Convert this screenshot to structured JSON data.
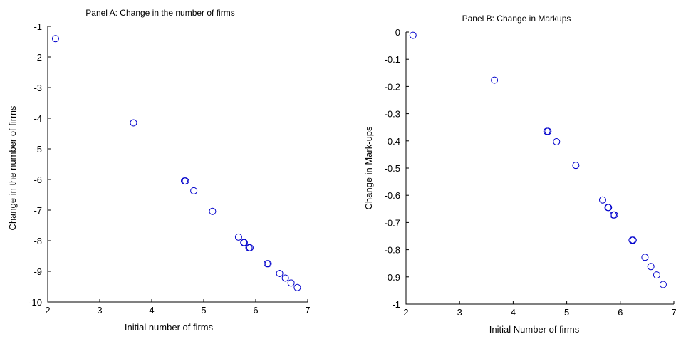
{
  "chart_data": [
    {
      "type": "scatter",
      "title": "Panel A: Change in the number of firms",
      "xlabel": "Initial number of firms",
      "ylabel": "Change in the number of firms",
      "xlim": [
        2,
        7
      ],
      "ylim": [
        -10,
        -1
      ],
      "xticks": [
        2,
        3,
        4,
        5,
        6,
        7
      ],
      "yticks": [
        -1,
        -2,
        -3,
        -4,
        -5,
        -6,
        -7,
        -8,
        -9,
        -10
      ],
      "grid": false,
      "marker": "open-circle",
      "color": "#0000cc",
      "points": [
        {
          "x": 2.15,
          "y": -1.4
        },
        {
          "x": 3.65,
          "y": -4.15
        },
        {
          "x": 4.63,
          "y": -6.05
        },
        {
          "x": 4.65,
          "y": -6.05
        },
        {
          "x": 4.81,
          "y": -6.37
        },
        {
          "x": 5.17,
          "y": -7.04
        },
        {
          "x": 5.67,
          "y": -7.88
        },
        {
          "x": 5.77,
          "y": -8.06
        },
        {
          "x": 5.78,
          "y": -8.06
        },
        {
          "x": 5.87,
          "y": -8.23
        },
        {
          "x": 5.89,
          "y": -8.23
        },
        {
          "x": 6.22,
          "y": -8.75
        },
        {
          "x": 6.24,
          "y": -8.75
        },
        {
          "x": 6.46,
          "y": -9.07
        },
        {
          "x": 6.57,
          "y": -9.22
        },
        {
          "x": 6.68,
          "y": -9.38
        },
        {
          "x": 6.8,
          "y": -9.53
        }
      ]
    },
    {
      "type": "scatter",
      "title": "Panel B: Change in Markups",
      "xlabel": "Initial Number of firms",
      "ylabel": "Change in Mark-ups",
      "xlim": [
        2,
        7
      ],
      "ylim": [
        -1,
        0
      ],
      "xticks": [
        2,
        3,
        4,
        5,
        6,
        7
      ],
      "yticks": [
        "0",
        "-0.1",
        "-0.2",
        "-0.3",
        "-0.4",
        "-0.5",
        "-0.6",
        "-0.7",
        "-0.8",
        "-0.9",
        "-1"
      ],
      "grid": false,
      "marker": "open-circle",
      "color": "#0000cc",
      "points": [
        {
          "x": 2.13,
          "y": -0.012
        },
        {
          "x": 3.65,
          "y": -0.177
        },
        {
          "x": 4.63,
          "y": -0.365
        },
        {
          "x": 4.65,
          "y": -0.365
        },
        {
          "x": 4.81,
          "y": -0.403
        },
        {
          "x": 5.17,
          "y": -0.49
        },
        {
          "x": 5.67,
          "y": -0.617
        },
        {
          "x": 5.77,
          "y": -0.645
        },
        {
          "x": 5.78,
          "y": -0.645
        },
        {
          "x": 5.87,
          "y": -0.672
        },
        {
          "x": 5.89,
          "y": -0.672
        },
        {
          "x": 6.22,
          "y": -0.765
        },
        {
          "x": 6.24,
          "y": -0.765
        },
        {
          "x": 6.46,
          "y": -0.828
        },
        {
          "x": 6.57,
          "y": -0.862
        },
        {
          "x": 6.68,
          "y": -0.893
        },
        {
          "x": 6.8,
          "y": -0.928
        }
      ]
    }
  ]
}
